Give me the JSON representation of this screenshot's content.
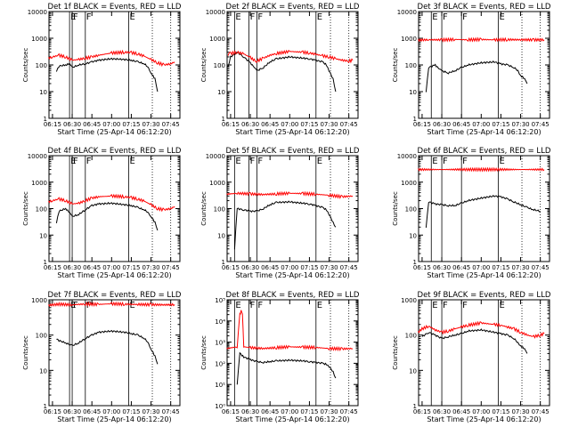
{
  "page": {
    "time_ticks": [
      "06:15",
      "06:30",
      "06:45",
      "07:00",
      "07:15",
      "07:30",
      "07:45"
    ],
    "xlabel": "Start Time (25-Apr-14 06:12:20)",
    "ylabel": "Counts/sec",
    "y_ticks_linear": [
      "1",
      "10",
      "100",
      "1000",
      "10000"
    ],
    "y_ticks_exp": [
      "10⁰",
      "10¹",
      "10²",
      "10³",
      "10⁴",
      "10⁵"
    ],
    "colors": {
      "events": "#000000",
      "lld": "#ff0000"
    },
    "flag_labels": [
      "E",
      "F",
      "F",
      "E"
    ]
  },
  "chart_data": [
    {
      "type": "line",
      "title": "Det 1f BLACK = Events, RED = LLD",
      "xlim": [
        "06:12:20",
        "07:52:00"
      ],
      "ylim": [
        1,
        10000
      ],
      "ylog": true,
      "series": [
        {
          "name": "Events",
          "color": "#000000",
          "x": [
            "06:18",
            "06:20",
            "06:25",
            "06:28",
            "06:30",
            "06:35",
            "06:40",
            "06:45",
            "06:50",
            "07:00",
            "07:10",
            "07:15",
            "07:20",
            "07:25",
            "07:28",
            "07:30",
            "07:33",
            "07:35"
          ],
          "values": [
            60,
            90,
            100,
            110,
            80,
            100,
            110,
            130,
            150,
            170,
            160,
            150,
            130,
            110,
            80,
            50,
            30,
            10
          ]
        },
        {
          "name": "LLD",
          "color": "#ff0000",
          "x": [
            "06:12",
            "06:15",
            "06:20",
            "06:25",
            "06:30",
            "06:35",
            "06:40",
            "06:45",
            "06:50",
            "07:00",
            "07:10",
            "07:15",
            "07:20",
            "07:25",
            "07:30",
            "07:35",
            "07:40",
            "07:45",
            "07:48"
          ],
          "values": [
            180,
            200,
            230,
            200,
            150,
            160,
            180,
            200,
            230,
            280,
            300,
            290,
            260,
            210,
            160,
            120,
            100,
            110,
            130
          ]
        }
      ]
    },
    {
      "type": "line",
      "title": "Det 2f BLACK = Events, RED = LLD",
      "xlim": [
        "06:12:20",
        "07:52:00"
      ],
      "ylim": [
        1,
        10000
      ],
      "ylog": true,
      "series": [
        {
          "name": "Events",
          "color": "#000000",
          "x": [
            "06:13",
            "06:15",
            "06:20",
            "06:25",
            "06:30",
            "06:33",
            "06:35",
            "06:40",
            "06:45",
            "06:50",
            "07:00",
            "07:10",
            "07:15",
            "07:20",
            "07:25",
            "07:28",
            "07:30",
            "07:33",
            "07:35"
          ],
          "values": [
            80,
            200,
            300,
            200,
            120,
            80,
            60,
            80,
            130,
            170,
            200,
            180,
            170,
            150,
            130,
            100,
            60,
            30,
            10
          ]
        },
        {
          "name": "LLD",
          "color": "#ff0000",
          "x": [
            "06:13",
            "06:15",
            "06:20",
            "06:25",
            "06:30",
            "06:33",
            "06:35",
            "06:40",
            "06:45",
            "06:50",
            "07:00",
            "07:10",
            "07:15",
            "07:20",
            "07:25",
            "07:30",
            "07:35",
            "07:40",
            "07:45",
            "07:48"
          ],
          "values": [
            250,
            270,
            300,
            260,
            190,
            150,
            140,
            180,
            230,
            270,
            320,
            300,
            280,
            250,
            220,
            200,
            170,
            150,
            140,
            150
          ]
        }
      ]
    },
    {
      "type": "line",
      "title": "Det 3f BLACK = Events, RED = LLD",
      "xlim": [
        "06:12:20",
        "07:52:00"
      ],
      "ylim": [
        1,
        10000
      ],
      "ylog": true,
      "series": [
        {
          "name": "Events",
          "color": "#000000",
          "x": [
            "06:18",
            "06:20",
            "06:25",
            "06:28",
            "06:30",
            "06:35",
            "06:40",
            "06:45",
            "06:50",
            "07:00",
            "07:10",
            "07:15",
            "07:20",
            "07:25",
            "07:28",
            "07:30",
            "07:33",
            "07:35"
          ],
          "values": [
            10,
            80,
            100,
            70,
            60,
            50,
            60,
            80,
            100,
            120,
            130,
            110,
            100,
            80,
            60,
            40,
            30,
            20
          ]
        },
        {
          "name": "LLD",
          "color": "#ff0000",
          "x": [
            "06:12",
            "06:20",
            "06:30",
            "06:40",
            "06:50",
            "07:00",
            "07:10",
            "07:20",
            "07:30",
            "07:40",
            "07:48"
          ],
          "values": [
            850,
            880,
            870,
            900,
            880,
            900,
            870,
            890,
            880,
            870,
            880
          ]
        }
      ]
    },
    {
      "type": "line",
      "title": "Det 4f BLACK = Events, RED = LLD",
      "xlim": [
        "06:12:20",
        "07:52:00"
      ],
      "ylim": [
        1,
        10000
      ],
      "ylog": true,
      "series": [
        {
          "name": "Events",
          "color": "#000000",
          "x": [
            "06:18",
            "06:20",
            "06:25",
            "06:28",
            "06:30",
            "06:35",
            "06:40",
            "06:45",
            "06:50",
            "07:00",
            "07:10",
            "07:15",
            "07:20",
            "07:25",
            "07:28",
            "07:30",
            "07:33",
            "07:35"
          ],
          "values": [
            30,
            80,
            100,
            70,
            50,
            60,
            90,
            130,
            150,
            160,
            140,
            130,
            110,
            90,
            70,
            50,
            30,
            15
          ]
        },
        {
          "name": "LLD",
          "color": "#ff0000",
          "x": [
            "06:12",
            "06:15",
            "06:20",
            "06:25",
            "06:30",
            "06:35",
            "06:40",
            "06:45",
            "06:50",
            "07:00",
            "07:10",
            "07:15",
            "07:20",
            "07:25",
            "07:30",
            "07:35",
            "07:40",
            "07:45",
            "07:48"
          ],
          "values": [
            180,
            200,
            230,
            200,
            150,
            160,
            200,
            250,
            280,
            300,
            280,
            260,
            230,
            190,
            140,
            100,
            90,
            100,
            120
          ]
        }
      ]
    },
    {
      "type": "line",
      "title": "Det 5f BLACK = Events, RED = LLD",
      "xlim": [
        "06:12:20",
        "07:52:00"
      ],
      "ylim": [
        1,
        10000
      ],
      "ylog": true,
      "series": [
        {
          "name": "Events",
          "color": "#000000",
          "x": [
            "06:18",
            "06:20",
            "06:25",
            "06:30",
            "06:35",
            "06:40",
            "06:45",
            "06:50",
            "07:00",
            "07:10",
            "07:15",
            "07:20",
            "07:25",
            "07:28",
            "07:30",
            "07:33",
            "07:35"
          ],
          "values": [
            3,
            100,
            90,
            80,
            80,
            100,
            140,
            170,
            180,
            160,
            150,
            130,
            110,
            90,
            60,
            30,
            20
          ]
        },
        {
          "name": "LLD",
          "color": "#ff0000",
          "x": [
            "06:12",
            "06:20",
            "06:30",
            "06:40",
            "06:50",
            "07:00",
            "07:10",
            "07:20",
            "07:30",
            "07:40",
            "07:48"
          ],
          "values": [
            350,
            380,
            360,
            340,
            360,
            380,
            370,
            350,
            320,
            280,
            300
          ]
        }
      ]
    },
    {
      "type": "line",
      "title": "Det 6f BLACK = Events, RED = LLD",
      "xlim": [
        "06:12:20",
        "07:52:00"
      ],
      "ylim": [
        1,
        10000
      ],
      "ylog": true,
      "series": [
        {
          "name": "Events",
          "color": "#000000",
          "x": [
            "06:18",
            "06:20",
            "06:25",
            "06:30",
            "06:35",
            "06:40",
            "06:45",
            "06:50",
            "07:00",
            "07:10",
            "07:15",
            "07:20",
            "07:25",
            "07:30",
            "07:35",
            "07:40",
            "07:45"
          ],
          "values": [
            20,
            180,
            150,
            140,
            130,
            130,
            160,
            200,
            250,
            300,
            280,
            230,
            180,
            140,
            110,
            90,
            80
          ]
        },
        {
          "name": "LLD",
          "color": "#ff0000",
          "x": [
            "06:12",
            "07:48"
          ],
          "values": [
            3000,
            3000
          ]
        }
      ]
    },
    {
      "type": "line",
      "title": "Det 7f BLACK = Events, RED = LLD",
      "xlim": [
        "06:12:20",
        "07:52:00"
      ],
      "ylim": [
        1,
        1000
      ],
      "ylog": true,
      "series": [
        {
          "name": "Events",
          "color": "#000000",
          "x": [
            "06:18",
            "06:20",
            "06:25",
            "06:30",
            "06:35",
            "06:40",
            "06:45",
            "06:50",
            "07:00",
            "07:10",
            "07:15",
            "07:20",
            "07:25",
            "07:28",
            "07:30",
            "07:33",
            "07:35"
          ],
          "values": [
            80,
            70,
            60,
            50,
            60,
            80,
            100,
            120,
            130,
            120,
            110,
            100,
            80,
            60,
            40,
            25,
            15
          ]
        },
        {
          "name": "LLD",
          "color": "#ff0000",
          "x": [
            "06:12",
            "06:20",
            "06:30",
            "06:40",
            "06:50",
            "07:00",
            "07:10",
            "07:20",
            "07:30",
            "07:40",
            "07:48"
          ],
          "values": [
            700,
            750,
            720,
            760,
            740,
            770,
            750,
            740,
            730,
            720,
            730
          ]
        }
      ]
    },
    {
      "type": "line",
      "title": "Det 8f BLACK = Events, RED = LLD",
      "xlim": [
        "06:12:20",
        "07:52:00"
      ],
      "ylim": [
        1,
        100000
      ],
      "ylog": true,
      "series": [
        {
          "name": "Events",
          "color": "#000000",
          "x": [
            "06:20",
            "06:22",
            "06:25",
            "06:30",
            "06:35",
            "06:40",
            "06:45",
            "06:50",
            "07:00",
            "07:10",
            "07:15",
            "07:20",
            "07:25",
            "07:28",
            "07:30",
            "07:33",
            "07:35"
          ],
          "values": [
            10,
            300,
            200,
            150,
            120,
            110,
            120,
            130,
            140,
            130,
            120,
            110,
            100,
            90,
            70,
            40,
            20
          ]
        },
        {
          "name": "LLD",
          "color": "#ff0000",
          "x": [
            "06:12",
            "06:20",
            "06:22",
            "06:23",
            "06:24",
            "06:25",
            "06:30",
            "06:40",
            "06:50",
            "07:00",
            "07:10",
            "07:20",
            "07:30",
            "07:40",
            "07:48"
          ],
          "values": [
            500,
            600,
            20000,
            30000,
            25000,
            600,
            550,
            500,
            550,
            600,
            580,
            560,
            500,
            480,
            500
          ]
        }
      ]
    },
    {
      "type": "line",
      "title": "Det 9f BLACK = Events, RED = LLD",
      "xlim": [
        "06:12:20",
        "07:52:00"
      ],
      "ylim": [
        1,
        1000
      ],
      "ylog": true,
      "series": [
        {
          "name": "Events",
          "color": "#000000",
          "x": [
            "06:15",
            "06:20",
            "06:25",
            "06:30",
            "06:35",
            "06:40",
            "06:45",
            "06:50",
            "07:00",
            "07:10",
            "07:15",
            "07:20",
            "07:25",
            "07:28",
            "07:30",
            "07:33",
            "07:35"
          ],
          "values": [
            90,
            120,
            100,
            80,
            90,
            100,
            110,
            130,
            140,
            120,
            110,
            100,
            80,
            60,
            50,
            40,
            30
          ]
        },
        {
          "name": "LLD",
          "color": "#ff0000",
          "x": [
            "06:12",
            "06:15",
            "06:20",
            "06:25",
            "06:30",
            "06:35",
            "06:40",
            "06:45",
            "06:50",
            "07:00",
            "07:10",
            "07:15",
            "07:20",
            "07:25",
            "07:30",
            "07:35",
            "07:40",
            "07:45",
            "07:48"
          ],
          "values": [
            120,
            150,
            180,
            140,
            120,
            130,
            150,
            170,
            190,
            220,
            200,
            190,
            170,
            150,
            120,
            100,
            90,
            100,
            110
          ]
        }
      ]
    }
  ]
}
